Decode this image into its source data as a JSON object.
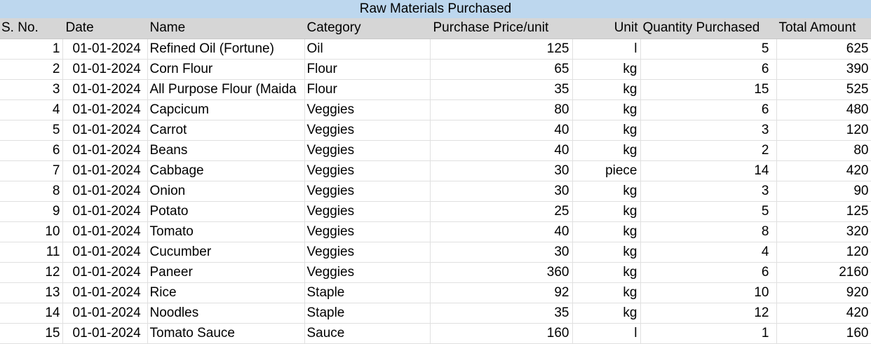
{
  "sheet": {
    "title": "Raw Materials Purchased",
    "headers": {
      "sno": "S. No.",
      "date": "Date",
      "name": "Name",
      "category": "Category",
      "price": "Purchase Price/unit",
      "unit": "Unit",
      "qty": "Quantity Purchased",
      "total": "Total Amount"
    },
    "rows": [
      {
        "sno": "1",
        "date": "01-01-2024",
        "name": "Refined Oil (Fortune)",
        "category": "Oil",
        "price": "125",
        "unit": "l",
        "qty": "5",
        "total": "625"
      },
      {
        "sno": "2",
        "date": "01-01-2024",
        "name": "Corn Flour",
        "category": "Flour",
        "price": "65",
        "unit": "kg",
        "qty": "6",
        "total": "390"
      },
      {
        "sno": "3",
        "date": "01-01-2024",
        "name": "All Purpose Flour (Maida",
        "category": "Flour",
        "price": "35",
        "unit": "kg",
        "qty": "15",
        "total": "525"
      },
      {
        "sno": "4",
        "date": "01-01-2024",
        "name": "Capcicum",
        "category": "Veggies",
        "price": "80",
        "unit": "kg",
        "qty": "6",
        "total": "480"
      },
      {
        "sno": "5",
        "date": "01-01-2024",
        "name": "Carrot",
        "category": "Veggies",
        "price": "40",
        "unit": "kg",
        "qty": "3",
        "total": "120"
      },
      {
        "sno": "6",
        "date": "01-01-2024",
        "name": "Beans",
        "category": "Veggies",
        "price": "40",
        "unit": "kg",
        "qty": "2",
        "total": "80"
      },
      {
        "sno": "7",
        "date": "01-01-2024",
        "name": "Cabbage",
        "category": "Veggies",
        "price": "30",
        "unit": "piece",
        "qty": "14",
        "total": "420"
      },
      {
        "sno": "8",
        "date": "01-01-2024",
        "name": "Onion",
        "category": "Veggies",
        "price": "30",
        "unit": "kg",
        "qty": "3",
        "total": "90"
      },
      {
        "sno": "9",
        "date": "01-01-2024",
        "name": "Potato",
        "category": "Veggies",
        "price": "25",
        "unit": "kg",
        "qty": "5",
        "total": "125"
      },
      {
        "sno": "10",
        "date": "01-01-2024",
        "name": "Tomato",
        "category": "Veggies",
        "price": "40",
        "unit": "kg",
        "qty": "8",
        "total": "320"
      },
      {
        "sno": "11",
        "date": "01-01-2024",
        "name": "Cucumber",
        "category": "Veggies",
        "price": "30",
        "unit": "kg",
        "qty": "4",
        "total": "120"
      },
      {
        "sno": "12",
        "date": "01-01-2024",
        "name": "Paneer",
        "category": "Veggies",
        "price": "360",
        "unit": "kg",
        "qty": "6",
        "total": "2160"
      },
      {
        "sno": "13",
        "date": "01-01-2024",
        "name": "Rice",
        "category": "Staple",
        "price": "92",
        "unit": "kg",
        "qty": "10",
        "total": "920"
      },
      {
        "sno": "14",
        "date": "01-01-2024",
        "name": "Noodles",
        "category": "Staple",
        "price": "35",
        "unit": "kg",
        "qty": "12",
        "total": "420"
      },
      {
        "sno": "15",
        "date": "01-01-2024",
        "name": "Tomato Sauce",
        "category": "Sauce",
        "price": "160",
        "unit": "l",
        "qty": "1",
        "total": "160"
      }
    ]
  },
  "colors": {
    "title_bg": "#bdd7ee",
    "header_bg": "#d6d6d6",
    "gridline": "#e0e0e0"
  }
}
